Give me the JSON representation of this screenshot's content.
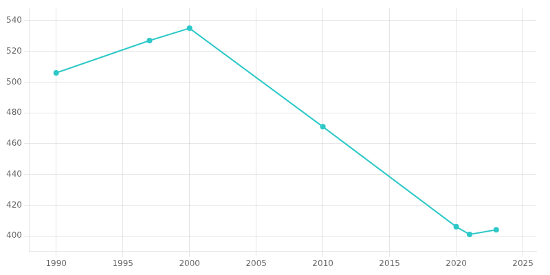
{
  "chart_data": {
    "type": "line",
    "x": [
      1990,
      1997,
      2000,
      2010,
      2020,
      2021,
      2023
    ],
    "values": [
      506,
      527,
      535,
      471,
      406,
      401,
      404
    ],
    "color": "#2ec8c8",
    "marker": "circle",
    "xlim": [
      1988,
      2026
    ],
    "xticks": [
      1990,
      1995,
      2000,
      2005,
      2010,
      2015,
      2020,
      2025
    ],
    "ylim": [
      390,
      548
    ],
    "yticks": [
      400,
      420,
      440,
      460,
      480,
      500,
      520,
      540
    ],
    "grid": true
  }
}
